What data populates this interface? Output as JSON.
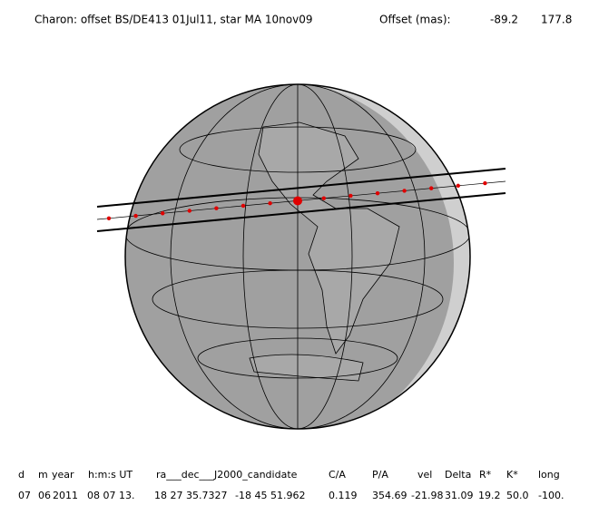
{
  "header": {
    "title": "Charon: offset BS/DE413 01Jul11, star MA 10nov09",
    "offset_label": "Offset (mas):",
    "offsets": [
      "-89.2",
      "177.8"
    ]
  },
  "table": {
    "columns": [
      "d",
      "m",
      "year",
      "h:m:s UT",
      "ra___dec___J2000_candidate",
      "C/A",
      "P/A",
      "vel",
      "Delta",
      "R*",
      "K*",
      "long"
    ],
    "row": [
      "07",
      "06",
      "2011",
      "08 07 13.",
      "18 27 35.7327",
      "-18 45  51.962",
      "0.119",
      "354.69",
      "-21.98",
      "31.09",
      "19.2",
      "50.0",
      "-100."
    ]
  }
}
